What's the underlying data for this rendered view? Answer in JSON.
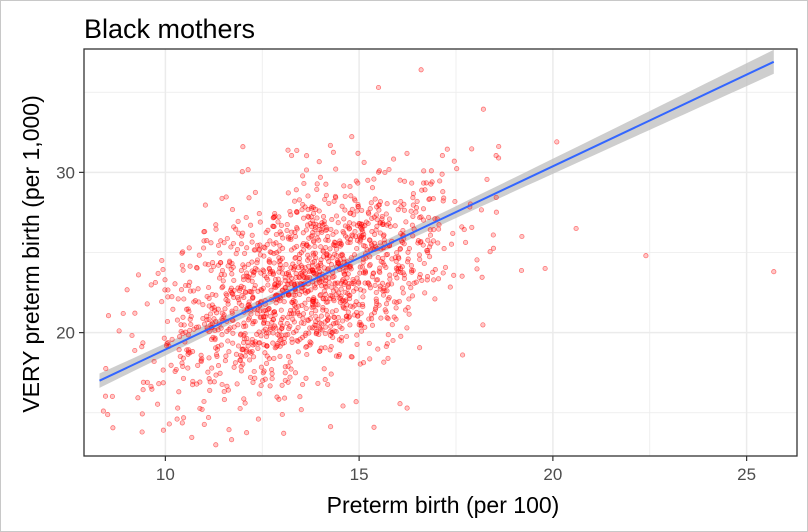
{
  "colors": {
    "point": "#ff0000",
    "fit_line": "#3366ff",
    "confidence_band": "#bdbdbd",
    "grid": "#ebebeb",
    "panel_border": "#333333"
  },
  "chart_data": {
    "type": "scatter",
    "title": "Black mothers",
    "xlabel": "Preterm birth (per 100)",
    "ylabel": "VERY preterm birth (per 1,000)",
    "xlim": [
      7.9,
      26.3
    ],
    "ylim": [
      12.3,
      37.7
    ],
    "x_ticks": [
      10,
      15,
      20,
      25
    ],
    "x_tick_labels": [
      "10",
      "15",
      "20",
      "25"
    ],
    "y_ticks": [
      20,
      30
    ],
    "y_tick_labels": [
      "20",
      "30"
    ],
    "grid": true,
    "legend": "none",
    "n_points_approx": 1500,
    "cluster": {
      "x_mean": 13.6,
      "x_sd": 1.9,
      "y_mean": 22.9,
      "y_sd": 3.3,
      "correlation": 0.5
    },
    "outliers": [
      {
        "x": 16.6,
        "y": 36.4
      },
      {
        "x": 15.5,
        "y": 35.3
      },
      {
        "x": 12.0,
        "y": 31.6
      },
      {
        "x": 18.6,
        "y": 30.9
      },
      {
        "x": 20.1,
        "y": 31.9
      },
      {
        "x": 20.6,
        "y": 26.5
      },
      {
        "x": 22.4,
        "y": 24.8
      },
      {
        "x": 25.7,
        "y": 23.8
      },
      {
        "x": 19.8,
        "y": 24.0
      },
      {
        "x": 19.2,
        "y": 26.0
      },
      {
        "x": 9.4,
        "y": 13.8
      },
      {
        "x": 10.1,
        "y": 14.3
      },
      {
        "x": 11.3,
        "y": 13.0
      },
      {
        "x": 8.4,
        "y": 15.1
      },
      {
        "x": 12.4,
        "y": 14.6
      }
    ],
    "fit": {
      "method": "linear",
      "x": [
        8.3,
        25.7
      ],
      "y": [
        17.0,
        36.9
      ],
      "ci_halfwidth_at_ends": [
        0.45,
        0.75
      ],
      "ci_halfwidth_at_mean": 0.3
    }
  }
}
